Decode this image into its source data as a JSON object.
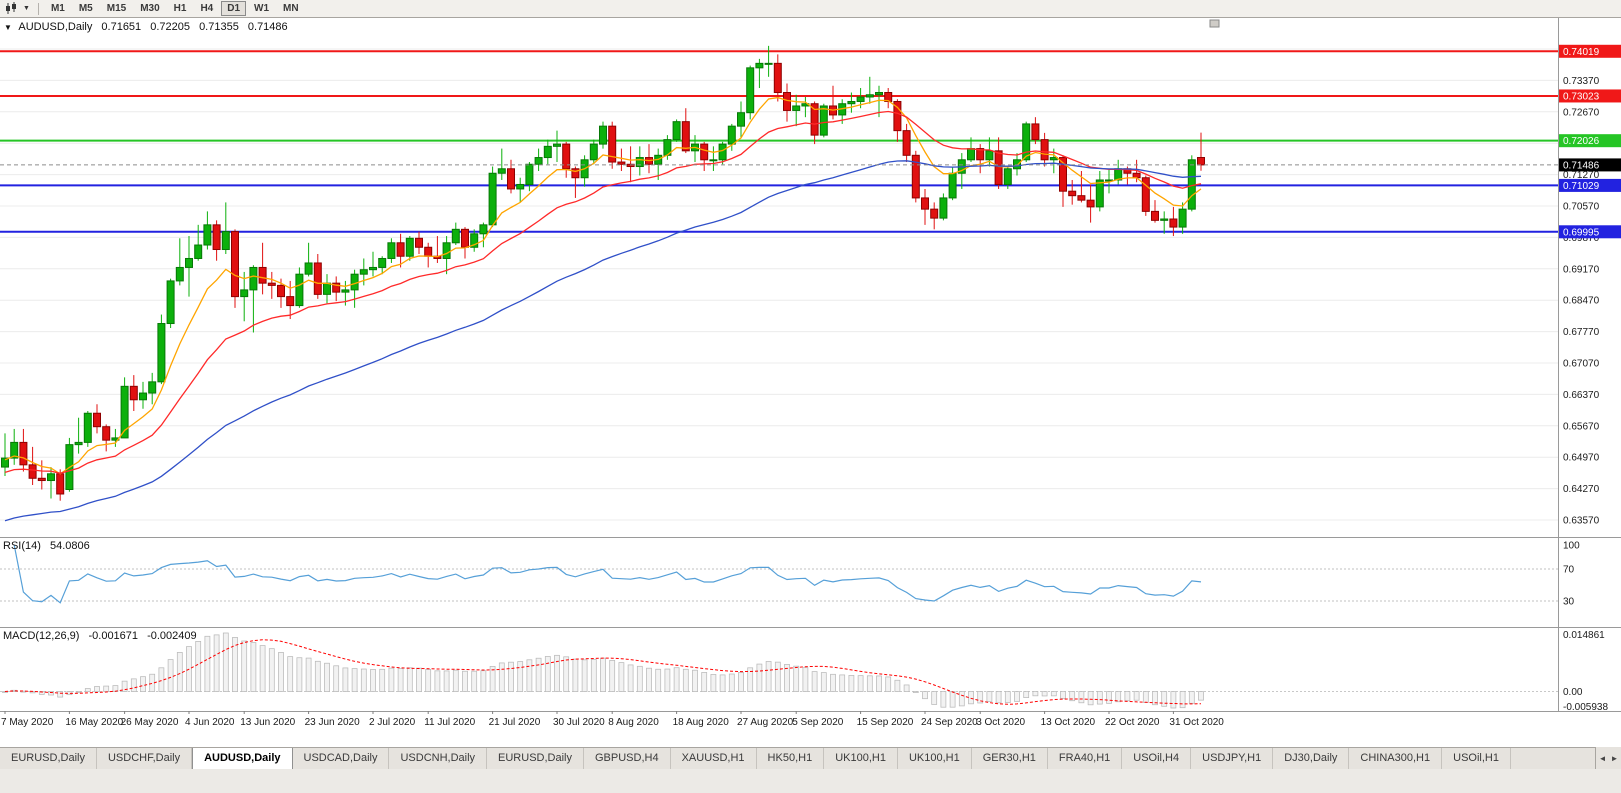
{
  "toolbar": {
    "caret_icon": "▼",
    "timeframes": [
      {
        "label": "M1",
        "active": false
      },
      {
        "label": "M5",
        "active": false
      },
      {
        "label": "M15",
        "active": false
      },
      {
        "label": "M30",
        "active": false
      },
      {
        "label": "H1",
        "active": false
      },
      {
        "label": "H4",
        "active": false
      },
      {
        "label": "D1",
        "active": true
      },
      {
        "label": "W1",
        "active": false
      },
      {
        "label": "MN",
        "active": false
      }
    ]
  },
  "chart_data": {
    "type": "candlestick",
    "symbol": "AUDUSD",
    "period": "Daily",
    "header": {
      "collapse_icon": "▼",
      "symbol_label": "AUDUSD,Daily",
      "open": "0.71651",
      "high": "0.72205",
      "low": "0.71355",
      "close": "0.71486"
    },
    "price_axis": {
      "view_min": 0.63191,
      "view_max": 0.74761,
      "tick_labels": [
        "0.74070",
        "0.73370",
        "0.72670",
        "0.71970",
        "0.71270",
        "0.70570",
        "0.69870",
        "0.69170",
        "0.68470",
        "0.67770",
        "0.67070",
        "0.66370",
        "0.65670",
        "0.64970",
        "0.64270",
        "0.63570"
      ]
    },
    "x_ticks": [
      {
        "bar": 0,
        "label": "7 May 2020"
      },
      {
        "bar": 7,
        "label": "16 May 2020"
      },
      {
        "bar": 13,
        "label": "26 May 2020"
      },
      {
        "bar": 20,
        "label": "4 Jun 2020"
      },
      {
        "bar": 26,
        "label": "13 Jun 2020"
      },
      {
        "bar": 33,
        "label": "23 Jun 2020"
      },
      {
        "bar": 40,
        "label": "2 Jul 2020"
      },
      {
        "bar": 46,
        "label": "11 Jul 2020"
      },
      {
        "bar": 53,
        "label": "21 Jul 2020"
      },
      {
        "bar": 60,
        "label": "30 Jul 2020"
      },
      {
        "bar": 66,
        "label": "8 Aug 2020"
      },
      {
        "bar": 73,
        "label": "18 Aug 2020"
      },
      {
        "bar": 80,
        "label": "27 Aug 2020"
      },
      {
        "bar": 86,
        "label": "5 Sep 2020"
      },
      {
        "bar": 93,
        "label": "15 Sep 2020"
      },
      {
        "bar": 100,
        "label": "24 Sep 2020"
      },
      {
        "bar": 106,
        "label": "3 Oct 2020"
      },
      {
        "bar": 113,
        "label": "13 Oct 2020"
      },
      {
        "bar": 120,
        "label": "22 Oct 2020"
      },
      {
        "bar": 127,
        "label": "31 Oct 2020"
      }
    ],
    "levels": [
      {
        "price": 0.74019,
        "label": "0.74019",
        "color": "#F01818",
        "width": 2,
        "type": "resistance"
      },
      {
        "price": 0.73023,
        "label": "0.73023",
        "color": "#F01818",
        "width": 2,
        "type": "resistance"
      },
      {
        "price": 0.72026,
        "label": "0.72026",
        "color": "#25C525",
        "width": 2,
        "type": "resistance"
      },
      {
        "price": 0.71029,
        "label": "0.71029",
        "color": "#2222E0",
        "width": 2,
        "type": "support"
      },
      {
        "price": 0.69995,
        "label": "0.69995",
        "color": "#2222E0",
        "width": 2,
        "type": "support"
      }
    ],
    "current_price": {
      "value": 0.71486,
      "label": "0.71486",
      "box_color": "#000000"
    },
    "moving_averages": [
      {
        "name": "ma-fast",
        "period": 8,
        "seed": 0.649,
        "color": "#FFA500"
      },
      {
        "name": "ma-medium",
        "period": 21,
        "seed": 0.646,
        "color": "#FF2A2A"
      },
      {
        "name": "ma-slow",
        "period": 55,
        "seed": 0.635,
        "color": "#3050C8"
      }
    ],
    "colors": {
      "up": "#0CB00C",
      "up_border": "#067806",
      "down": "#E01010",
      "down_border": "#8E0000",
      "grid": "#ECECEC",
      "axis_text": "#1A1A1A",
      "bid_line": "#8C8C8C"
    },
    "candles": [
      [
        0.6475,
        0.655,
        0.6455,
        0.6495
      ],
      [
        0.6495,
        0.656,
        0.648,
        0.653
      ],
      [
        0.653,
        0.656,
        0.6465,
        0.648
      ],
      [
        0.648,
        0.652,
        0.6435,
        0.645
      ],
      [
        0.645,
        0.649,
        0.6425,
        0.6445
      ],
      [
        0.6445,
        0.6475,
        0.6405,
        0.646
      ],
      [
        0.646,
        0.647,
        0.64,
        0.6415
      ],
      [
        0.6425,
        0.654,
        0.642,
        0.6525
      ],
      [
        0.6525,
        0.6585,
        0.6505,
        0.653
      ],
      [
        0.653,
        0.66,
        0.652,
        0.6595
      ],
      [
        0.6595,
        0.6615,
        0.655,
        0.6565
      ],
      [
        0.6565,
        0.657,
        0.651,
        0.6535
      ],
      [
        0.6535,
        0.656,
        0.652,
        0.654
      ],
      [
        0.654,
        0.6675,
        0.654,
        0.6655
      ],
      [
        0.6655,
        0.668,
        0.66,
        0.6625
      ],
      [
        0.6625,
        0.6665,
        0.6605,
        0.664
      ],
      [
        0.664,
        0.6685,
        0.6615,
        0.6665
      ],
      [
        0.6665,
        0.6815,
        0.666,
        0.6795
      ],
      [
        0.6795,
        0.6895,
        0.6785,
        0.689
      ],
      [
        0.689,
        0.6985,
        0.688,
        0.692
      ],
      [
        0.692,
        0.699,
        0.6855,
        0.694
      ],
      [
        0.694,
        0.7015,
        0.6935,
        0.697
      ],
      [
        0.697,
        0.7045,
        0.696,
        0.7015
      ],
      [
        0.7015,
        0.7025,
        0.6935,
        0.696
      ],
      [
        0.696,
        0.7065,
        0.695,
        0.7
      ],
      [
        0.7,
        0.7005,
        0.683,
        0.6855
      ],
      [
        0.6855,
        0.691,
        0.68,
        0.687
      ],
      [
        0.687,
        0.6925,
        0.6775,
        0.692
      ],
      [
        0.692,
        0.6975,
        0.686,
        0.6885
      ],
      [
        0.6885,
        0.691,
        0.685,
        0.688
      ],
      [
        0.688,
        0.6895,
        0.683,
        0.6855
      ],
      [
        0.6855,
        0.689,
        0.6805,
        0.6835
      ],
      [
        0.6835,
        0.692,
        0.683,
        0.6905
      ],
      [
        0.6905,
        0.6975,
        0.69,
        0.693
      ],
      [
        0.693,
        0.695,
        0.685,
        0.686
      ],
      [
        0.686,
        0.6905,
        0.684,
        0.6885
      ],
      [
        0.6885,
        0.69,
        0.6845,
        0.6865
      ],
      [
        0.6865,
        0.689,
        0.6835,
        0.687
      ],
      [
        0.687,
        0.6915,
        0.683,
        0.6905
      ],
      [
        0.6905,
        0.694,
        0.688,
        0.6915
      ],
      [
        0.6915,
        0.6955,
        0.69,
        0.692
      ],
      [
        0.692,
        0.6945,
        0.6905,
        0.694
      ],
      [
        0.694,
        0.6985,
        0.693,
        0.6975
      ],
      [
        0.6975,
        0.6995,
        0.692,
        0.6945
      ],
      [
        0.6945,
        0.699,
        0.6935,
        0.6985
      ],
      [
        0.6985,
        0.7,
        0.695,
        0.6965
      ],
      [
        0.6965,
        0.6975,
        0.692,
        0.6945
      ],
      [
        0.6945,
        0.699,
        0.693,
        0.694
      ],
      [
        0.694,
        0.699,
        0.6905,
        0.6975
      ],
      [
        0.6975,
        0.702,
        0.697,
        0.7005
      ],
      [
        0.7005,
        0.701,
        0.694,
        0.6965
      ],
      [
        0.6965,
        0.7005,
        0.6955,
        0.6995
      ],
      [
        0.6995,
        0.702,
        0.6965,
        0.7015
      ],
      [
        0.7015,
        0.7145,
        0.701,
        0.713
      ],
      [
        0.713,
        0.7185,
        0.7115,
        0.714
      ],
      [
        0.714,
        0.716,
        0.7085,
        0.7095
      ],
      [
        0.7095,
        0.712,
        0.7065,
        0.7105
      ],
      [
        0.7105,
        0.7155,
        0.709,
        0.715
      ],
      [
        0.715,
        0.7185,
        0.7135,
        0.7165
      ],
      [
        0.7165,
        0.7205,
        0.715,
        0.719
      ],
      [
        0.719,
        0.7225,
        0.7155,
        0.7195
      ],
      [
        0.7195,
        0.72,
        0.712,
        0.714
      ],
      [
        0.714,
        0.7145,
        0.7075,
        0.712
      ],
      [
        0.712,
        0.717,
        0.71,
        0.716
      ],
      [
        0.716,
        0.7205,
        0.715,
        0.7195
      ],
      [
        0.7195,
        0.7245,
        0.7185,
        0.7235
      ],
      [
        0.7235,
        0.7245,
        0.714,
        0.7155
      ],
      [
        0.7155,
        0.7185,
        0.7135,
        0.715
      ],
      [
        0.715,
        0.719,
        0.711,
        0.7145
      ],
      [
        0.7145,
        0.719,
        0.7125,
        0.7165
      ],
      [
        0.7165,
        0.7195,
        0.713,
        0.715
      ],
      [
        0.715,
        0.7185,
        0.7115,
        0.717
      ],
      [
        0.717,
        0.7215,
        0.716,
        0.7205
      ],
      [
        0.7205,
        0.725,
        0.72,
        0.7245
      ],
      [
        0.7245,
        0.7275,
        0.7175,
        0.718
      ],
      [
        0.718,
        0.7215,
        0.7155,
        0.7195
      ],
      [
        0.7195,
        0.72,
        0.7135,
        0.716
      ],
      [
        0.716,
        0.719,
        0.7135,
        0.716
      ],
      [
        0.716,
        0.72,
        0.715,
        0.7195
      ],
      [
        0.7195,
        0.724,
        0.718,
        0.7235
      ],
      [
        0.7235,
        0.729,
        0.721,
        0.7265
      ],
      [
        0.7265,
        0.737,
        0.725,
        0.7365
      ],
      [
        0.7365,
        0.7385,
        0.732,
        0.7375
      ],
      [
        0.7375,
        0.7414,
        0.7345,
        0.7375
      ],
      [
        0.7375,
        0.7395,
        0.729,
        0.731
      ],
      [
        0.731,
        0.733,
        0.7245,
        0.727
      ],
      [
        0.727,
        0.7305,
        0.7235,
        0.728
      ],
      [
        0.728,
        0.73,
        0.7255,
        0.7285
      ],
      [
        0.7285,
        0.729,
        0.7195,
        0.7215
      ],
      [
        0.7215,
        0.7285,
        0.721,
        0.728
      ],
      [
        0.728,
        0.7325,
        0.725,
        0.726
      ],
      [
        0.726,
        0.7295,
        0.724,
        0.7285
      ],
      [
        0.7285,
        0.731,
        0.7265,
        0.729
      ],
      [
        0.729,
        0.732,
        0.7275,
        0.73
      ],
      [
        0.73,
        0.7345,
        0.7285,
        0.7305
      ],
      [
        0.7305,
        0.7325,
        0.7255,
        0.731
      ],
      [
        0.731,
        0.732,
        0.7275,
        0.729
      ],
      [
        0.729,
        0.7295,
        0.72,
        0.7225
      ],
      [
        0.7225,
        0.724,
        0.7155,
        0.717
      ],
      [
        0.717,
        0.718,
        0.7065,
        0.7075
      ],
      [
        0.7075,
        0.7095,
        0.7015,
        0.705
      ],
      [
        0.705,
        0.7065,
        0.7005,
        0.703
      ],
      [
        0.703,
        0.7085,
        0.7025,
        0.7075
      ],
      [
        0.7075,
        0.7145,
        0.707,
        0.713
      ],
      [
        0.713,
        0.7175,
        0.7095,
        0.716
      ],
      [
        0.716,
        0.721,
        0.7155,
        0.7185
      ],
      [
        0.7185,
        0.7195,
        0.713,
        0.716
      ],
      [
        0.716,
        0.721,
        0.7145,
        0.718
      ],
      [
        0.718,
        0.721,
        0.7095,
        0.7105
      ],
      [
        0.7105,
        0.7145,
        0.7095,
        0.714
      ],
      [
        0.714,
        0.7175,
        0.7125,
        0.716
      ],
      [
        0.716,
        0.7245,
        0.7155,
        0.724
      ],
      [
        0.724,
        0.7255,
        0.7195,
        0.7205
      ],
      [
        0.7205,
        0.722,
        0.7145,
        0.716
      ],
      [
        0.716,
        0.7185,
        0.713,
        0.7165
      ],
      [
        0.7165,
        0.717,
        0.7055,
        0.709
      ],
      [
        0.709,
        0.7115,
        0.706,
        0.708
      ],
      [
        0.708,
        0.7135,
        0.7065,
        0.707
      ],
      [
        0.707,
        0.7105,
        0.702,
        0.7055
      ],
      [
        0.7055,
        0.7135,
        0.7045,
        0.7115
      ],
      [
        0.7115,
        0.714,
        0.7085,
        0.7115
      ],
      [
        0.7115,
        0.716,
        0.7105,
        0.714
      ],
      [
        0.714,
        0.7145,
        0.7105,
        0.713
      ],
      [
        0.713,
        0.716,
        0.711,
        0.712
      ],
      [
        0.712,
        0.7125,
        0.7035,
        0.7045
      ],
      [
        0.7045,
        0.707,
        0.702,
        0.7025
      ],
      [
        0.7025,
        0.7045,
        0.6995,
        0.7028
      ],
      [
        0.7028,
        0.7055,
        0.699,
        0.701
      ],
      [
        0.701,
        0.7065,
        0.6995,
        0.705
      ],
      [
        0.705,
        0.717,
        0.7045,
        0.716
      ],
      [
        0.71651,
        0.72205,
        0.71355,
        0.71486
      ]
    ],
    "rsi": {
      "name": "RSI(14)",
      "value": "54.0806",
      "period": 14,
      "levels": [
        70,
        30
      ],
      "axis_labels": [
        "100",
        "70",
        "30"
      ],
      "color": "#56A0D8"
    },
    "macd": {
      "name": "MACD(12,26,9)",
      "values": [
        "-0.001671",
        "-0.002409"
      ],
      "fast": 12,
      "slow": 26,
      "signal": 9,
      "axis_labels": [
        "0.014861",
        "0.00",
        "-0.005938"
      ],
      "histogram_fill": "#F2F2F2",
      "histogram_stroke": "#B9B9B9",
      "signal_color": "#FF0000"
    }
  },
  "tabbar": {
    "scroll_left": "◄",
    "scroll_right": "►",
    "tabs": [
      {
        "label": "EURUSD,Daily",
        "active": false
      },
      {
        "label": "USDCHF,Daily",
        "active": false
      },
      {
        "label": "AUDUSD,Daily",
        "active": true
      },
      {
        "label": "USDCAD,Daily",
        "active": false
      },
      {
        "label": "USDCNH,Daily",
        "active": false
      },
      {
        "label": "EURUSD,Daily",
        "active": false
      },
      {
        "label": "GBPUSD,H4",
        "active": false
      },
      {
        "label": "XAUUSD,H1",
        "active": false
      },
      {
        "label": "HK50,H1",
        "active": false
      },
      {
        "label": "UK100,H1",
        "active": false
      },
      {
        "label": "UK100,H1",
        "active": false
      },
      {
        "label": "GER30,H1",
        "active": false
      },
      {
        "label": "FRA40,H1",
        "active": false
      },
      {
        "label": "USOil,H4",
        "active": false
      },
      {
        "label": "USDJPY,H1",
        "active": false
      },
      {
        "label": "DJ30,Daily",
        "active": false
      },
      {
        "label": "CHINA300,H1",
        "active": false
      },
      {
        "label": "USOil,H1",
        "active": false
      }
    ]
  }
}
